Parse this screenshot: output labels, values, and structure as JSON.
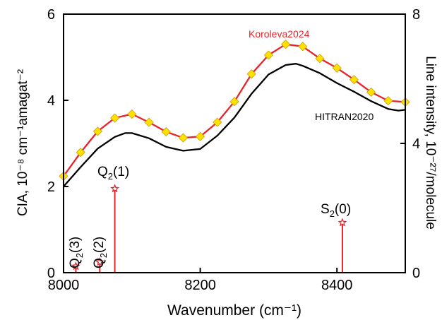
{
  "chart_data": {
    "type": "line",
    "xlabel": "Wavenumber (cm⁻¹)",
    "ylabel_left": "CIA, 10⁻⁸ cm⁻¹amagat⁻²",
    "ylabel_right": "Line intensity, 10⁻²⁷/molecule",
    "xlim": [
      8000,
      8500
    ],
    "ylim_left": [
      0,
      6
    ],
    "ylim_right": [
      0,
      8
    ],
    "xticks": [
      "8000",
      "8200",
      "8400"
    ],
    "yticks_left": [
      "0",
      "2",
      "4",
      "6"
    ],
    "yticks_right": [
      "0",
      "4",
      "8"
    ],
    "series": [
      {
        "name": "Koroleva2024",
        "color": "#e8242a",
        "marker": "diamond",
        "marker_fill": "#ffe000",
        "x": [
          8000,
          8025,
          8050,
          8075,
          8100,
          8125,
          8150,
          8175,
          8200,
          8225,
          8250,
          8275,
          8300,
          8325,
          8350,
          8375,
          8400,
          8425,
          8450,
          8475,
          8500
        ],
        "y": [
          2.24,
          2.79,
          3.28,
          3.59,
          3.68,
          3.49,
          3.27,
          3.13,
          3.16,
          3.49,
          3.97,
          4.61,
          5.05,
          5.3,
          5.25,
          4.97,
          4.75,
          4.48,
          4.19,
          3.99,
          3.96
        ]
      },
      {
        "name": "HITRAN2020",
        "color": "#000000",
        "x": [
          8000,
          8025,
          8050,
          8075,
          8090,
          8100,
          8125,
          8150,
          8175,
          8200,
          8225,
          8250,
          8275,
          8300,
          8325,
          8340,
          8350,
          8375,
          8400,
          8425,
          8450,
          8475,
          8490,
          8500
        ],
        "y": [
          2.0,
          2.45,
          2.88,
          3.15,
          3.24,
          3.24,
          3.12,
          2.92,
          2.83,
          2.87,
          3.18,
          3.6,
          4.15,
          4.6,
          4.82,
          4.85,
          4.8,
          4.63,
          4.4,
          4.2,
          3.98,
          3.8,
          3.76,
          3.78
        ]
      }
    ],
    "lines": [
      {
        "label_main": "Q",
        "label_sub": "2",
        "label_suffix": "(3)",
        "x": 8018,
        "intensity": 0.2
      },
      {
        "label_main": "Q",
        "label_sub": "2",
        "label_suffix": "(2)",
        "x": 8053,
        "intensity": 0.33
      },
      {
        "label_main": "Q",
        "label_sub": "2",
        "label_suffix": "(1)",
        "x": 8075,
        "intensity": 2.6
      },
      {
        "label_main": "S",
        "label_sub": "2",
        "label_suffix": "(0)",
        "x": 8408,
        "intensity": 1.55
      }
    ],
    "line_color": "#e8242a",
    "grid": false
  }
}
